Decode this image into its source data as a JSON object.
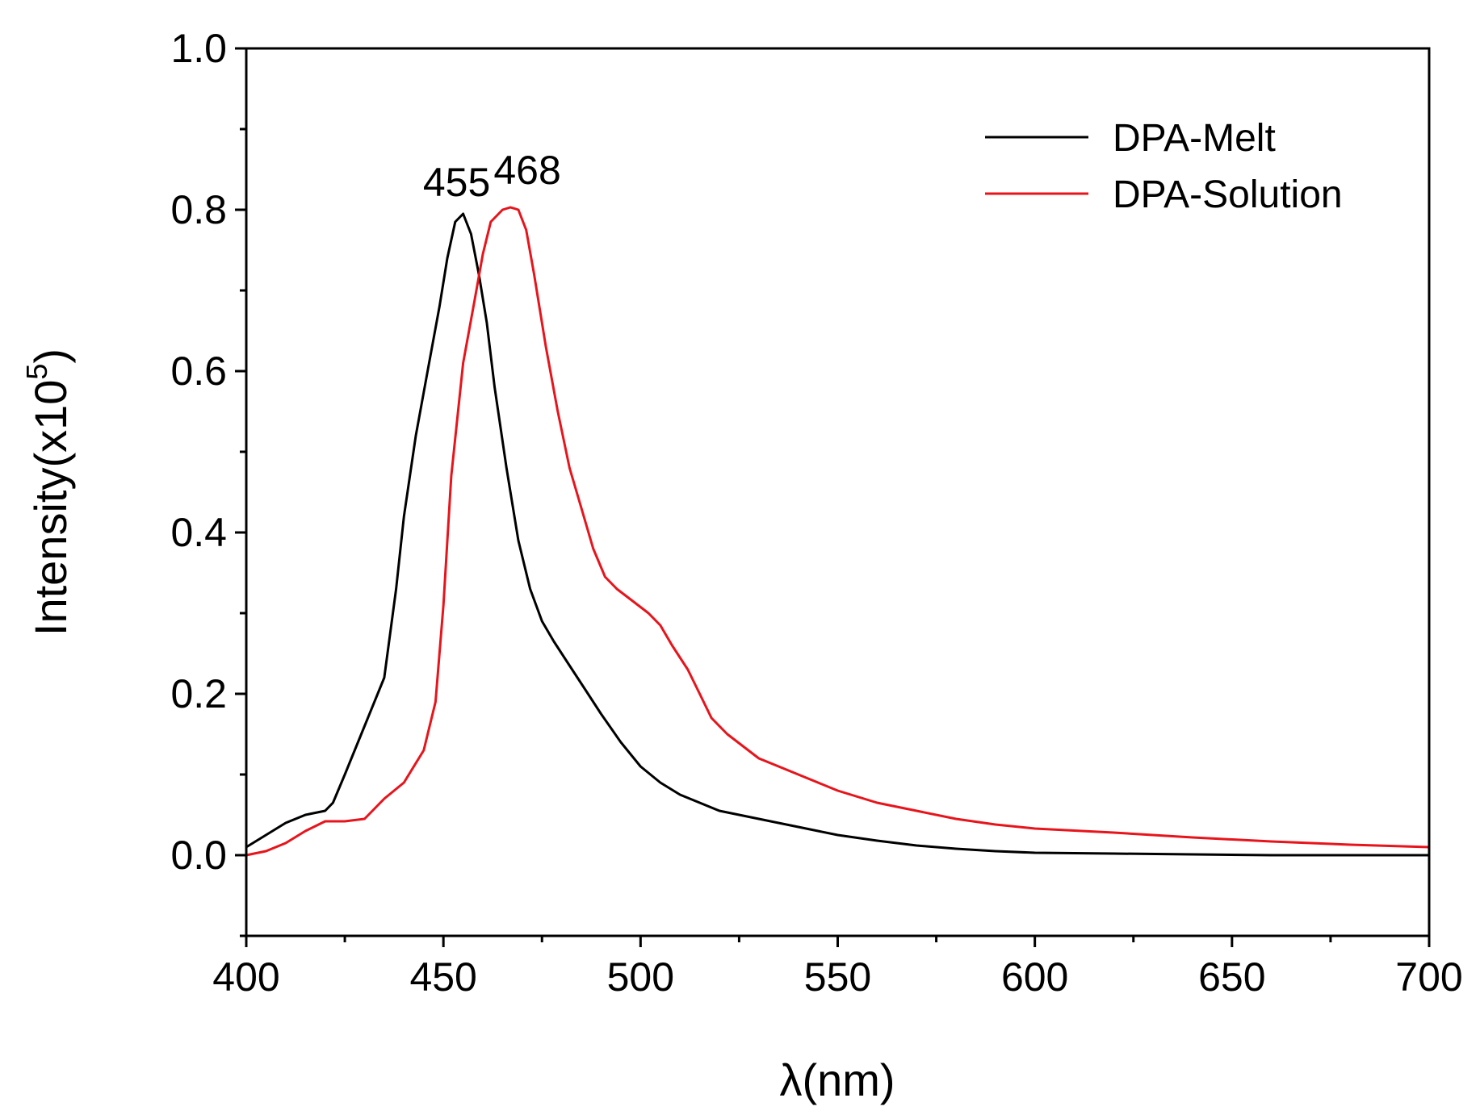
{
  "chart_data": {
    "type": "line",
    "title": "",
    "xlabel": "λ(nm)",
    "ylabel_main": "Intensity(x10",
    "ylabel_sup": "5",
    "ylabel_close": ")",
    "xlim": [
      400,
      700
    ],
    "ylim": [
      -0.1,
      1.0
    ],
    "grid": false,
    "legend_position": "top-right",
    "x_ticks": [
      400,
      450,
      500,
      550,
      600,
      650,
      700
    ],
    "x_tick_labels": [
      "400",
      "450",
      "500",
      "550",
      "600",
      "650",
      "700"
    ],
    "y_ticks": [
      0.0,
      0.2,
      0.4,
      0.6,
      0.8,
      1.0
    ],
    "y_tick_labels": [
      "0.0",
      "0.2",
      "0.4",
      "0.6",
      "0.8",
      "1.0"
    ],
    "annotations": [
      {
        "text": "455",
        "x": 455,
        "y": 0.795
      },
      {
        "text": "468",
        "x": 468,
        "y": 0.803
      }
    ],
    "series": [
      {
        "name": "DPA-Melt",
        "color": "#000000",
        "x": [
          400,
          405,
          410,
          415,
          420,
          422,
          425,
          430,
          435,
          438,
          440,
          443,
          446,
          449,
          451,
          453,
          455,
          457,
          459,
          461,
          463,
          466,
          469,
          472,
          475,
          478,
          482,
          486,
          490,
          495,
          500,
          505,
          510,
          515,
          520,
          530,
          540,
          550,
          560,
          570,
          580,
          590,
          600,
          620,
          640,
          660,
          680,
          700
        ],
        "y": [
          0.01,
          0.025,
          0.04,
          0.05,
          0.055,
          0.065,
          0.1,
          0.16,
          0.22,
          0.33,
          0.42,
          0.52,
          0.6,
          0.68,
          0.74,
          0.785,
          0.795,
          0.77,
          0.72,
          0.66,
          0.58,
          0.48,
          0.39,
          0.33,
          0.29,
          0.265,
          0.235,
          0.205,
          0.175,
          0.14,
          0.11,
          0.09,
          0.075,
          0.065,
          0.055,
          0.045,
          0.035,
          0.025,
          0.018,
          0.012,
          0.008,
          0.005,
          0.003,
          0.002,
          0.001,
          0.0,
          0.0,
          0.0
        ]
      },
      {
        "name": "DPA-Solution",
        "color": "#e8141b",
        "x": [
          400,
          405,
          410,
          415,
          420,
          425,
          430,
          435,
          440,
          445,
          448,
          450,
          452,
          455,
          458,
          460,
          462,
          465,
          467,
          469,
          471,
          473,
          476,
          479,
          482,
          485,
          488,
          491,
          494,
          498,
          502,
          505,
          508,
          512,
          515,
          518,
          522,
          526,
          530,
          535,
          540,
          545,
          550,
          560,
          570,
          580,
          590,
          600,
          620,
          640,
          660,
          680,
          700
        ],
        "y": [
          0.0,
          0.005,
          0.015,
          0.03,
          0.042,
          0.042,
          0.045,
          0.07,
          0.09,
          0.13,
          0.19,
          0.31,
          0.47,
          0.61,
          0.69,
          0.745,
          0.785,
          0.8,
          0.803,
          0.8,
          0.775,
          0.72,
          0.63,
          0.55,
          0.48,
          0.43,
          0.38,
          0.345,
          0.33,
          0.315,
          0.3,
          0.285,
          0.26,
          0.23,
          0.2,
          0.17,
          0.15,
          0.135,
          0.12,
          0.11,
          0.1,
          0.09,
          0.08,
          0.065,
          0.055,
          0.045,
          0.038,
          0.033,
          0.028,
          0.022,
          0.017,
          0.013,
          0.01
        ]
      }
    ]
  }
}
